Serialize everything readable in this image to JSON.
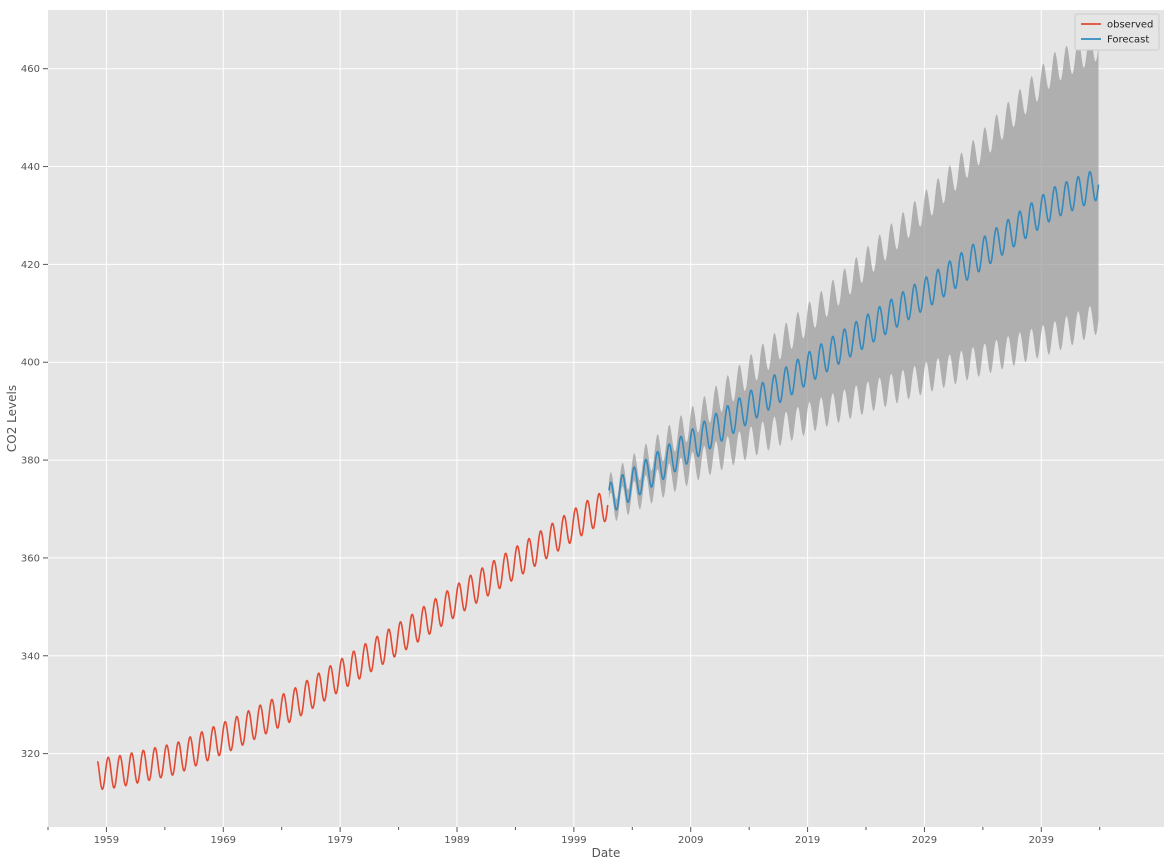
{
  "chart_data": {
    "type": "line",
    "title": "",
    "xlabel": "Date",
    "ylabel": "CO2 Levels",
    "xlim": [
      1954.0,
      2049.5
    ],
    "ylim": [
      305,
      472
    ],
    "x_ticks": [
      1959,
      1969,
      1979,
      1989,
      1999,
      2009,
      2019,
      2029,
      2039
    ],
    "x_minor_ticks": [
      1954,
      1964,
      1974,
      1984,
      1994,
      2004,
      2014,
      2024,
      2034,
      2044
    ],
    "y_ticks": [
      320,
      340,
      360,
      380,
      400,
      420,
      440,
      460
    ],
    "grid": true,
    "legend_position": "top-right",
    "seasonal_amplitude": 3.2,
    "series": [
      {
        "name": "observed",
        "color": "#E24A33",
        "x": [
          1958.25,
          1960,
          1965,
          1970,
          1975,
          1980,
          1985,
          1990,
          1995,
          2000,
          2001.9
        ],
        "y": [
          315.8,
          316.3,
          319.0,
          324.2,
          330.0,
          337.5,
          345.0,
          353.0,
          360.5,
          368.3,
          371.0
        ]
      },
      {
        "name": "Forecast",
        "color": "#348ABD",
        "x": [
          2002.0,
          2010,
          2020,
          2030,
          2040,
          2043.9
        ],
        "y": [
          372.0,
          384.5,
          400.3,
          415.5,
          432.5,
          436.5
        ]
      }
    ],
    "confidence_band": {
      "color": "#999999",
      "x": [
        2002.0,
        2010,
        2020,
        2030,
        2040,
        2043.9
      ],
      "lower": [
        370.0,
        379.5,
        389.5,
        397.5,
        405.0,
        409.0
      ],
      "upper": [
        374.0,
        389.5,
        411.0,
        434.0,
        460.0,
        465.0
      ]
    }
  }
}
